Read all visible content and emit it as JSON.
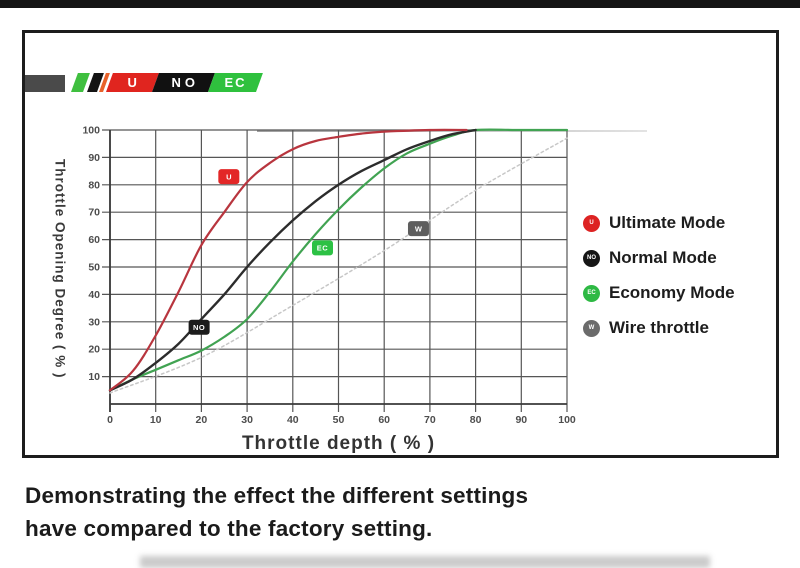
{
  "page": {
    "caption_line1": "Demonstrating the effect the different settings",
    "caption_line2": "have compared to the factory setting."
  },
  "logo": {
    "stripe_colors": [
      "#3fbf3f",
      "#141414",
      "#e8622a"
    ],
    "segments": [
      {
        "label": "U",
        "color": "#e0251f"
      },
      {
        "label": "NO",
        "color": "#111111"
      },
      {
        "label": "EC",
        "color": "#2fc13e"
      }
    ]
  },
  "legend": {
    "items": [
      {
        "badge": "U",
        "label": "Ultimate Mode",
        "color": "#dd2323"
      },
      {
        "badge": "NO",
        "label": "Normal Mode",
        "color": "#161616"
      },
      {
        "badge": "EC",
        "label": "Economy Mode",
        "color": "#2eb944"
      },
      {
        "badge": "W",
        "label": "Wire throttle",
        "color": "#6b6b6b"
      }
    ]
  },
  "chart_data": {
    "type": "line",
    "title": "",
    "xlabel": "Throttle depth ( % )",
    "ylabel": "Throttle Opening Degree ( % )",
    "xlim": [
      0,
      100
    ],
    "ylim": [
      0,
      100
    ],
    "x_ticks": [
      0,
      10,
      20,
      30,
      40,
      50,
      60,
      70,
      80,
      90,
      100
    ],
    "y_ticks": [
      10,
      20,
      30,
      40,
      50,
      60,
      70,
      80,
      90,
      100
    ],
    "grid": true,
    "grid_color": "#565656",
    "tick_label_color": "#4d4d4d",
    "legend_position": "right-outside",
    "series": [
      {
        "name": "Wire throttle",
        "color": "#c7c7c7",
        "style": "dashed",
        "width": 1.5,
        "points": [
          [
            0,
            4
          ],
          [
            20,
            17
          ],
          [
            40,
            36
          ],
          [
            60,
            56
          ],
          [
            80,
            78
          ],
          [
            100,
            97
          ]
        ]
      },
      {
        "name": "Economy Mode",
        "color": "#41a352",
        "style": "solid",
        "width": 2.2,
        "points": [
          [
            0,
            5
          ],
          [
            5,
            9
          ],
          [
            10,
            12.5
          ],
          [
            15,
            16
          ],
          [
            20,
            19.5
          ],
          [
            25,
            24.5
          ],
          [
            30,
            31
          ],
          [
            35,
            41
          ],
          [
            40,
            52
          ],
          [
            45,
            62
          ],
          [
            50,
            71
          ],
          [
            55,
            79
          ],
          [
            60,
            86
          ],
          [
            65,
            91.5
          ],
          [
            70,
            95
          ],
          [
            75,
            98
          ],
          [
            80,
            100
          ],
          [
            90,
            100
          ],
          [
            100,
            100
          ]
        ]
      },
      {
        "name": "Normal Mode",
        "color": "#2c2c2c",
        "style": "solid",
        "width": 2.4,
        "points": [
          [
            0,
            5
          ],
          [
            5,
            9
          ],
          [
            10,
            15
          ],
          [
            15,
            22
          ],
          [
            20,
            31
          ],
          [
            25,
            40
          ],
          [
            30,
            50
          ],
          [
            35,
            59
          ],
          [
            40,
            67
          ],
          [
            45,
            74
          ],
          [
            50,
            80
          ],
          [
            55,
            85
          ],
          [
            60,
            89
          ],
          [
            65,
            93
          ],
          [
            70,
            96
          ],
          [
            75,
            98.5
          ],
          [
            80,
            100
          ]
        ]
      },
      {
        "name": "Ultimate Mode",
        "color": "#b8353e",
        "style": "solid",
        "width": 2.2,
        "points": [
          [
            0,
            5
          ],
          [
            5,
            12
          ],
          [
            10,
            25
          ],
          [
            15,
            41
          ],
          [
            20,
            58
          ],
          [
            25,
            70
          ],
          [
            30,
            81
          ],
          [
            35,
            88
          ],
          [
            40,
            93
          ],
          [
            45,
            96
          ],
          [
            50,
            97.5
          ],
          [
            55,
            98.7
          ],
          [
            60,
            99.4
          ],
          [
            70,
            100
          ],
          [
            78,
            100
          ]
        ]
      }
    ],
    "markers": [
      {
        "label": "U",
        "x": 26,
        "y": 83,
        "color": "#e32727"
      },
      {
        "label": "NO",
        "x": 19.5,
        "y": 28,
        "color": "#1c1c1c"
      },
      {
        "label": "EC",
        "x": 46.5,
        "y": 57,
        "color": "#2cc144"
      },
      {
        "label": "W",
        "x": 67.5,
        "y": 64,
        "color": "#5e5e5e"
      }
    ]
  }
}
